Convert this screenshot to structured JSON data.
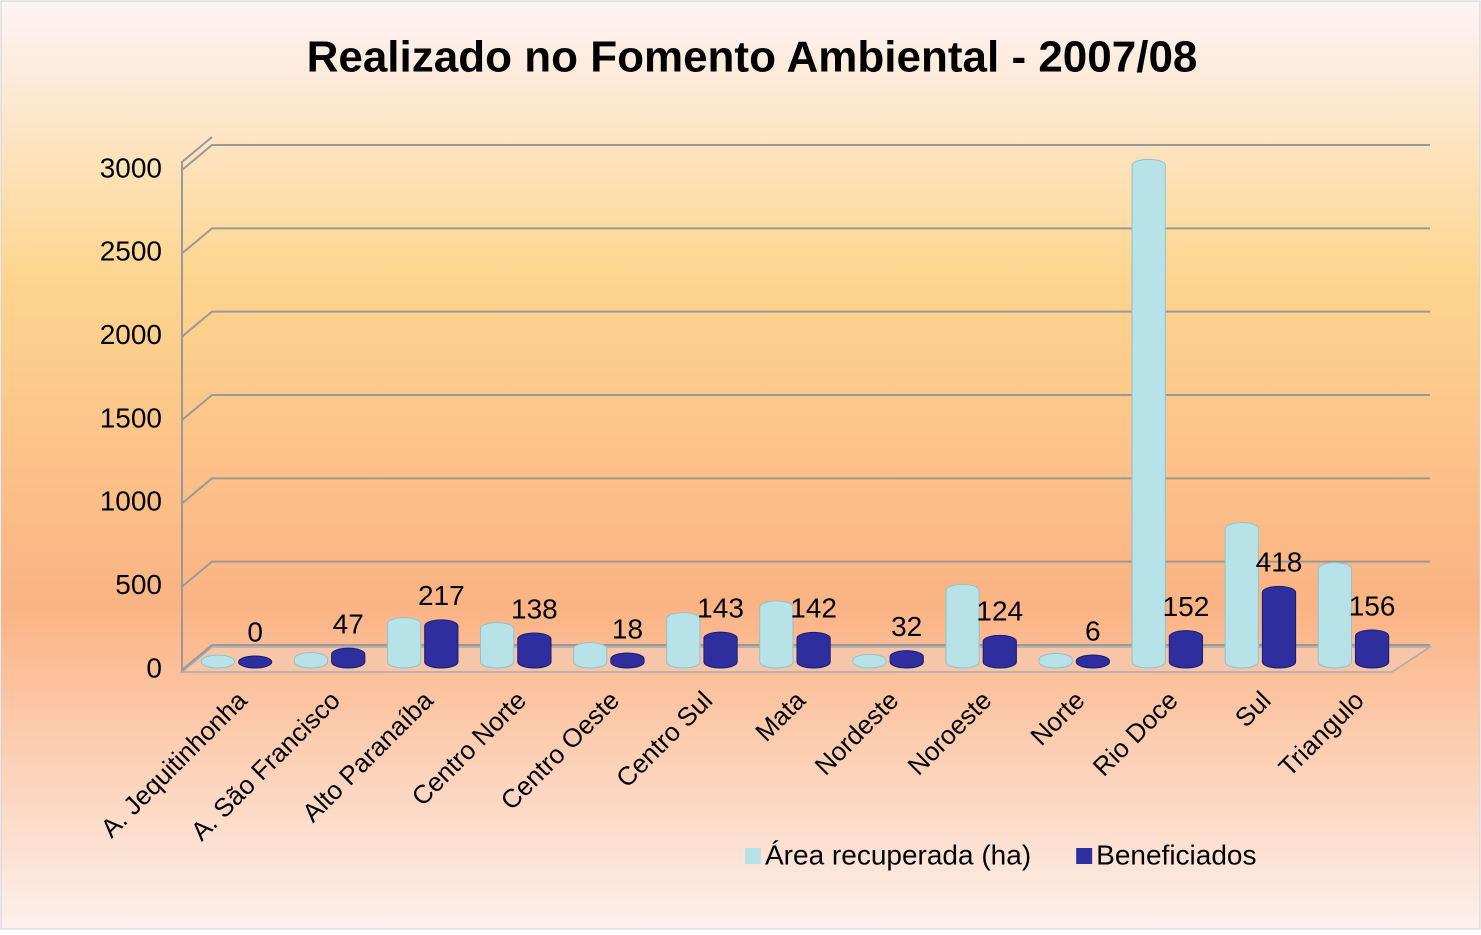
{
  "chart_data": {
    "type": "bar",
    "title": "Realizado no Fomento  Ambiental  - 2007/08",
    "categories": [
      "A. Jequitinhonha",
      "A. São Francisco",
      "Alto Paranaíba",
      "Centro Norte",
      "Centro Oeste",
      "Centro Sul",
      "Mata",
      "Nordeste",
      "Noroeste",
      "Norte",
      "Rio Doce",
      "Sul",
      "Triangulo"
    ],
    "series": [
      {
        "name": "Área recuperada (ha)",
        "color": "#b7e3e8",
        "values": [
          5,
          20,
          230,
          200,
          80,
          260,
          330,
          10,
          430,
          15,
          2980,
          800,
          560
        ]
      },
      {
        "name": "Beneficiados",
        "color": "#2e2e9e",
        "values": [
          0,
          47,
          217,
          138,
          18,
          143,
          142,
          32,
          124,
          6,
          152,
          418,
          156
        ]
      }
    ],
    "ylim": [
      0,
      3000
    ],
    "yticks": [
      0,
      500,
      1000,
      1500,
      2000,
      2500,
      3000
    ],
    "grid": true,
    "legend": "bottom"
  }
}
